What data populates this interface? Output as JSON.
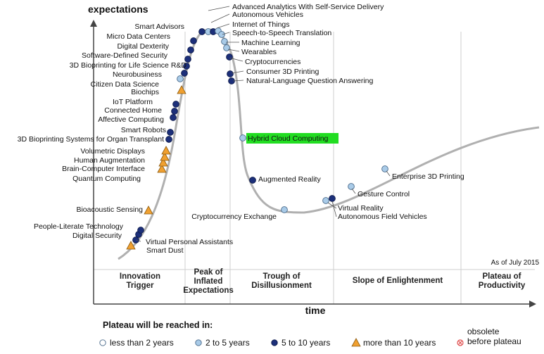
{
  "chart_data": {
    "type": "line",
    "y_axis_label": "expectations",
    "x_axis_label": "time",
    "as_of": "As of July 2015",
    "phases": [
      {
        "lines": [
          "Innovation",
          "Trigger"
        ]
      },
      {
        "lines": [
          "Peak of",
          "Inflated",
          "Expectations"
        ]
      },
      {
        "lines": [
          "Trough of",
          "Disillusionment"
        ]
      },
      {
        "lines": [
          "Slope of Enlightenment"
        ]
      },
      {
        "lines": [
          "Plateau of",
          "Productivity"
        ]
      }
    ],
    "legend": {
      "title": "Plateau will be reached in:",
      "items": [
        {
          "key": "lt2",
          "label": "less than 2 years"
        },
        {
          "key": "2to5",
          "label": "2 to 5 years"
        },
        {
          "key": "5to10",
          "label": "5 to 10 years"
        },
        {
          "key": "gt10",
          "label": "more than 10 years"
        },
        {
          "key": "obsolete",
          "label": "obsolete before plateau"
        }
      ]
    },
    "colors": {
      "lt2": "#ffffff",
      "2to5": "#a9cbe8",
      "5to10": "#1c2f7a",
      "gt10": "#f0a030",
      "obsolete": "#e05050",
      "curve": "#b0b0b0",
      "highlight": "#22dd22"
    },
    "technologies": [
      {
        "name": "Smart Dust",
        "category": "gt10"
      },
      {
        "name": "Virtual Personal Assistants",
        "category": "5to10"
      },
      {
        "name": "Digital Security",
        "category": "5to10"
      },
      {
        "name": "People-Literate Technology",
        "category": "5to10"
      },
      {
        "name": "Bioacoustic Sensing",
        "category": "gt10"
      },
      {
        "name": "Quantum Computing",
        "category": "gt10"
      },
      {
        "name": "Brain-Computer Interface",
        "category": "gt10"
      },
      {
        "name": "Human Augmentation",
        "category": "gt10"
      },
      {
        "name": "Volumetric Displays",
        "category": "gt10"
      },
      {
        "name": "3D Bioprinting Systems for Organ Transplant",
        "category": "5to10"
      },
      {
        "name": "Smart Robots",
        "category": "5to10"
      },
      {
        "name": "Affective Computing",
        "category": "5to10"
      },
      {
        "name": "Connected Home",
        "category": "5to10"
      },
      {
        "name": "IoT Platform",
        "category": "5to10"
      },
      {
        "name": "Biochips",
        "category": "gt10"
      },
      {
        "name": "Citizen Data Science",
        "category": "2to5"
      },
      {
        "name": "Neurobusiness",
        "category": "5to10"
      },
      {
        "name": "3D Bioprinting for Life Science R&D",
        "category": "5to10"
      },
      {
        "name": "Software-Defined Security",
        "category": "5to10"
      },
      {
        "name": "Digital Dexterity",
        "category": "5to10"
      },
      {
        "name": "Micro Data Centers",
        "category": "5to10"
      },
      {
        "name": "Smart Advisors",
        "category": "5to10"
      },
      {
        "name": "Advanced Analytics With Self-Service Delivery",
        "category": "2to5"
      },
      {
        "name": "Autonomous Vehicles",
        "category": "5to10"
      },
      {
        "name": "Internet of Things",
        "category": "2to5"
      },
      {
        "name": "Speech-to-Speech Translation",
        "category": "2to5"
      },
      {
        "name": "Machine Learning",
        "category": "2to5"
      },
      {
        "name": "Wearables",
        "category": "2to5"
      },
      {
        "name": "Cryptocurrencies",
        "category": "5to10"
      },
      {
        "name": "Consumer 3D Printing",
        "category": "5to10"
      },
      {
        "name": "Natural-Language Question Answering",
        "category": "5to10"
      },
      {
        "name": "Hybrid Cloud Computing",
        "category": "2to5",
        "highlighted": true
      },
      {
        "name": "Augmented Reality",
        "category": "5to10"
      },
      {
        "name": "Cryptocurrency Exchange",
        "category": "2to5"
      },
      {
        "name": "Virtual Reality",
        "category": "2to5"
      },
      {
        "name": "Autonomous Field Vehicles",
        "category": "5to10"
      },
      {
        "name": "Gesture Control",
        "category": "2to5"
      },
      {
        "name": "Enterprise 3D Printing",
        "category": "2to5"
      }
    ]
  }
}
